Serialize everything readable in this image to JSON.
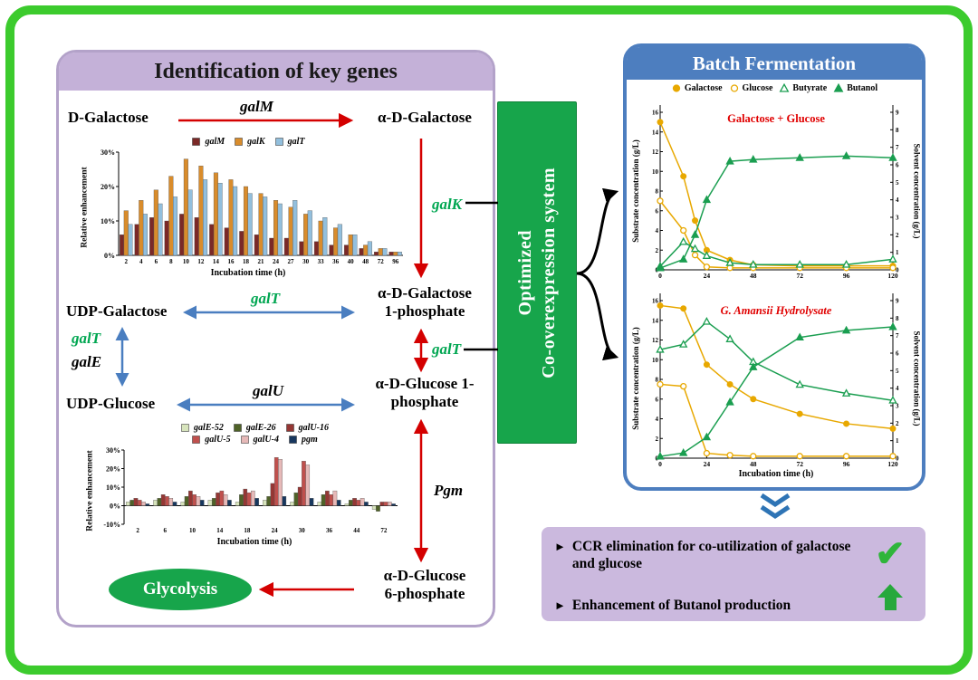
{
  "colors": {
    "frame_green": "#3ccb2d",
    "banner_green": "#17a54b",
    "left_header_purple": "#c4b1d8",
    "right_header_blue": "#4d7ebf",
    "summary_purple": "#cbb9de",
    "pathway_red": "#d40000",
    "pathway_blue": "#4a7ec0",
    "gene_green": "#00a651",
    "substrate_gold": "#e8a800",
    "solvent_green": "#1a9e50"
  },
  "figure": {
    "left_panel": {
      "title": "Identification of key genes",
      "nodes": {
        "d_galactose": "D-Galactose",
        "alpha_d_galactose": "α-D-Galactose",
        "udp_galactose": "UDP-Galactose",
        "udp_glucose": "UDP-Glucose",
        "galactose_1p_line1": "α-D-Galactose",
        "galactose_1p_line2": "1-phosphate",
        "glucose_1p_line1": "α-D-Glucose 1-",
        "glucose_1p_line2": "phosphate",
        "glucose_6p_line1": "α-D-Glucose",
        "glucose_6p_line2": "6-phosphate",
        "glycolysis": "Glycolysis"
      },
      "gene_labels": {
        "galM": "galM",
        "galK": "galK",
        "galT_top": "galT",
        "galT_left": "galT",
        "galE": "galE",
        "galU": "galU",
        "galT_right": "galT",
        "pgm": "Pgm"
      }
    },
    "banner": {
      "line1": "Optimized",
      "line2": "Co-overexpression system"
    },
    "right_panel": {
      "title": "Batch Fermentation",
      "legend": [
        {
          "label": "Galactose",
          "marker": "circle-filled",
          "color": "#e8a800"
        },
        {
          "label": "Glucose",
          "marker": "circle-open",
          "color": "#e8a800"
        },
        {
          "label": "Butyrate",
          "marker": "triangle-open",
          "color": "#1a9e50"
        },
        {
          "label": "Butanol",
          "marker": "triangle-filled",
          "color": "#1a9e50"
        }
      ]
    },
    "summary_box": {
      "bullets": [
        "CCR elimination for co-utilization of galactose and glucose",
        "Enhancement of Butanol production"
      ]
    }
  },
  "chart_data": [
    {
      "id": "relative_enhancement_galM_galK_galT",
      "type": "bar",
      "ylabel": "Relative enhancement",
      "xlabel": "Incubation time (h)",
      "ylim": [
        0,
        30
      ],
      "yticks": [
        "0%",
        "10%",
        "20%",
        "30%"
      ],
      "categories": [
        2,
        4,
        6,
        8,
        10,
        12,
        14,
        16,
        18,
        21,
        24,
        27,
        30,
        33,
        36,
        40,
        48,
        72,
        96
      ],
      "series": [
        {
          "name": "galM",
          "color": "#7b2927",
          "values": [
            6,
            9,
            11,
            10,
            12,
            11,
            9,
            8,
            7,
            6,
            5,
            5,
            4,
            4,
            3,
            3,
            2,
            1,
            1
          ]
        },
        {
          "name": "galK",
          "color": "#d98c2b",
          "values": [
            13,
            16,
            19,
            23,
            28,
            26,
            24,
            22,
            20,
            18,
            16,
            14,
            12,
            10,
            8,
            6,
            3,
            2,
            1
          ]
        },
        {
          "name": "galT",
          "color": "#92bfdd",
          "values": [
            9,
            12,
            15,
            17,
            19,
            22,
            21,
            20,
            18,
            17,
            15,
            16,
            13,
            11,
            9,
            6,
            4,
            2,
            1
          ]
        }
      ]
    },
    {
      "id": "relative_enhancement_galE_galU_pgm",
      "type": "bar",
      "ylabel": "Relative enhancement",
      "xlabel": "Incubation time (h)",
      "ylim": [
        -10,
        30
      ],
      "yticks": [
        "-10%",
        "0%",
        "10%",
        "20%",
        "30%"
      ],
      "categories": [
        2,
        6,
        10,
        14,
        18,
        24,
        30,
        36,
        44,
        72
      ],
      "series": [
        {
          "name": "galE-52",
          "color": "#d7e4bc",
          "values": [
            2,
            3,
            2,
            3,
            2,
            3,
            2,
            2,
            1,
            -2
          ]
        },
        {
          "name": "galE-26",
          "color": "#4f6228",
          "values": [
            3,
            4,
            5,
            4,
            6,
            5,
            7,
            6,
            3,
            -3
          ]
        },
        {
          "name": "galU-16",
          "color": "#953734",
          "values": [
            4,
            6,
            8,
            7,
            9,
            12,
            10,
            8,
            4,
            2
          ]
        },
        {
          "name": "galU-5",
          "color": "#c0504d",
          "values": [
            3,
            5,
            6,
            8,
            7,
            26,
            24,
            6,
            3,
            2
          ]
        },
        {
          "name": "galU-4",
          "color": "#e6b9b8",
          "values": [
            2,
            4,
            5,
            6,
            8,
            25,
            22,
            8,
            4,
            2
          ]
        },
        {
          "name": "pgm",
          "color": "#17375e",
          "values": [
            1,
            2,
            3,
            3,
            4,
            5,
            4,
            3,
            2,
            1
          ]
        }
      ]
    },
    {
      "id": "fermentation_galactose_glucose",
      "type": "line",
      "title": "Galactose + Glucose",
      "ylabel_left": "Substrate concentration (g/L)",
      "ylabel_right": "Solvent concentration (g/L)",
      "ylim_left": [
        0,
        16
      ],
      "ylim_right": [
        0,
        9
      ],
      "xticks": [
        0,
        24,
        48,
        72,
        96,
        120
      ],
      "x": [
        0,
        12,
        18,
        24,
        36,
        48,
        72,
        96,
        120
      ],
      "series": [
        {
          "name": "Galactose",
          "axis": "left",
          "marker": "circle-filled",
          "color": "#e8a800",
          "values": [
            15,
            9.5,
            5,
            2,
            1,
            0.5,
            0.4,
            0.4,
            0.4
          ]
        },
        {
          "name": "Glucose",
          "axis": "left",
          "marker": "circle-open",
          "color": "#e8a800",
          "values": [
            7,
            4,
            1.5,
            0.3,
            0.2,
            0.2,
            0.2,
            0.2,
            0.2
          ]
        },
        {
          "name": "Butyrate",
          "axis": "right",
          "marker": "triangle-open",
          "color": "#1a9e50",
          "values": [
            0.2,
            1.6,
            1.2,
            0.8,
            0.4,
            0.3,
            0.3,
            0.3,
            0.6
          ]
        },
        {
          "name": "Butanol",
          "axis": "right",
          "marker": "triangle-filled",
          "color": "#1a9e50",
          "values": [
            0.1,
            0.6,
            2.0,
            4.0,
            6.2,
            6.3,
            6.4,
            6.5,
            6.4
          ]
        }
      ]
    },
    {
      "id": "fermentation_g_amansii_hydrolysate",
      "type": "line",
      "title": "G. Amansii Hydrolysate",
      "ylabel_left": "Substrate concentration (g/L)",
      "ylabel_right": "Solvent concentration (g/L)",
      "xlabel": "Incubation time (h)",
      "ylim_left": [
        0,
        16
      ],
      "ylim_right": [
        0,
        9
      ],
      "xticks": [
        0,
        24,
        48,
        72,
        96,
        120
      ],
      "x": [
        0,
        12,
        24,
        36,
        48,
        72,
        96,
        120
      ],
      "series": [
        {
          "name": "Galactose",
          "axis": "left",
          "marker": "circle-filled",
          "color": "#e8a800",
          "values": [
            15.5,
            15.2,
            9.5,
            7.5,
            6,
            4.5,
            3.5,
            3
          ]
        },
        {
          "name": "Glucose",
          "axis": "left",
          "marker": "circle-open",
          "color": "#e8a800",
          "values": [
            7.5,
            7.3,
            0.5,
            0.3,
            0.2,
            0.2,
            0.2,
            0.2
          ]
        },
        {
          "name": "Butyrate",
          "axis": "right",
          "marker": "triangle-open",
          "color": "#1a9e50",
          "values": [
            6.2,
            6.5,
            7.8,
            6.8,
            5.5,
            4.2,
            3.7,
            3.3
          ]
        },
        {
          "name": "Butanol",
          "axis": "right",
          "marker": "triangle-filled",
          "color": "#1a9e50",
          "values": [
            0.1,
            0.3,
            1.2,
            3.2,
            5.2,
            6.9,
            7.3,
            7.5
          ]
        }
      ]
    }
  ]
}
